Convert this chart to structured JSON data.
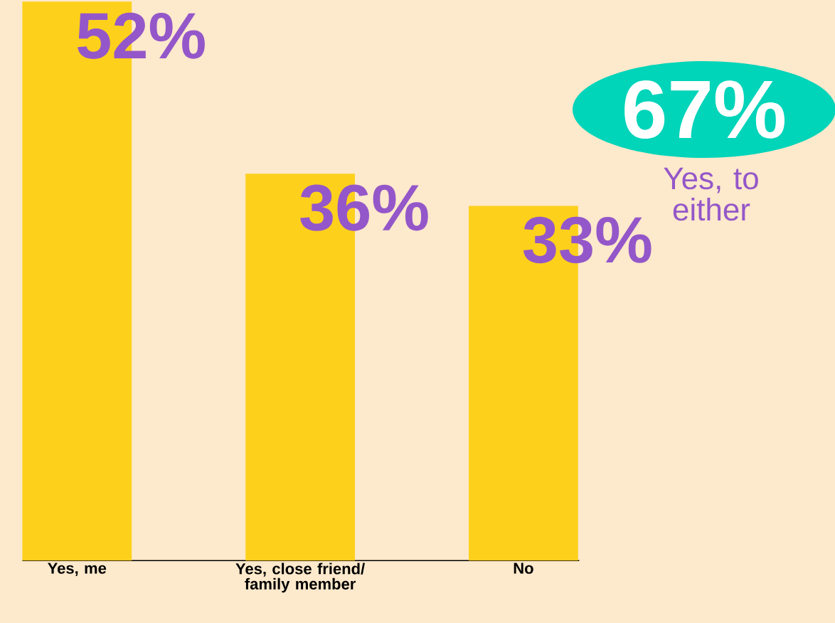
{
  "chart_data": {
    "type": "bar",
    "categories": [
      "Yes, me",
      "Yes, close friend/ family member",
      "No"
    ],
    "values": [
      52,
      36,
      33
    ],
    "value_labels": [
      "52%",
      "36%",
      "33%"
    ],
    "color": "#fdd01c",
    "ylim": [
      0,
      52
    ],
    "tick_labels": "x",
    "annotations": [
      "67%",
      "Yes, to either"
    ]
  }
}
